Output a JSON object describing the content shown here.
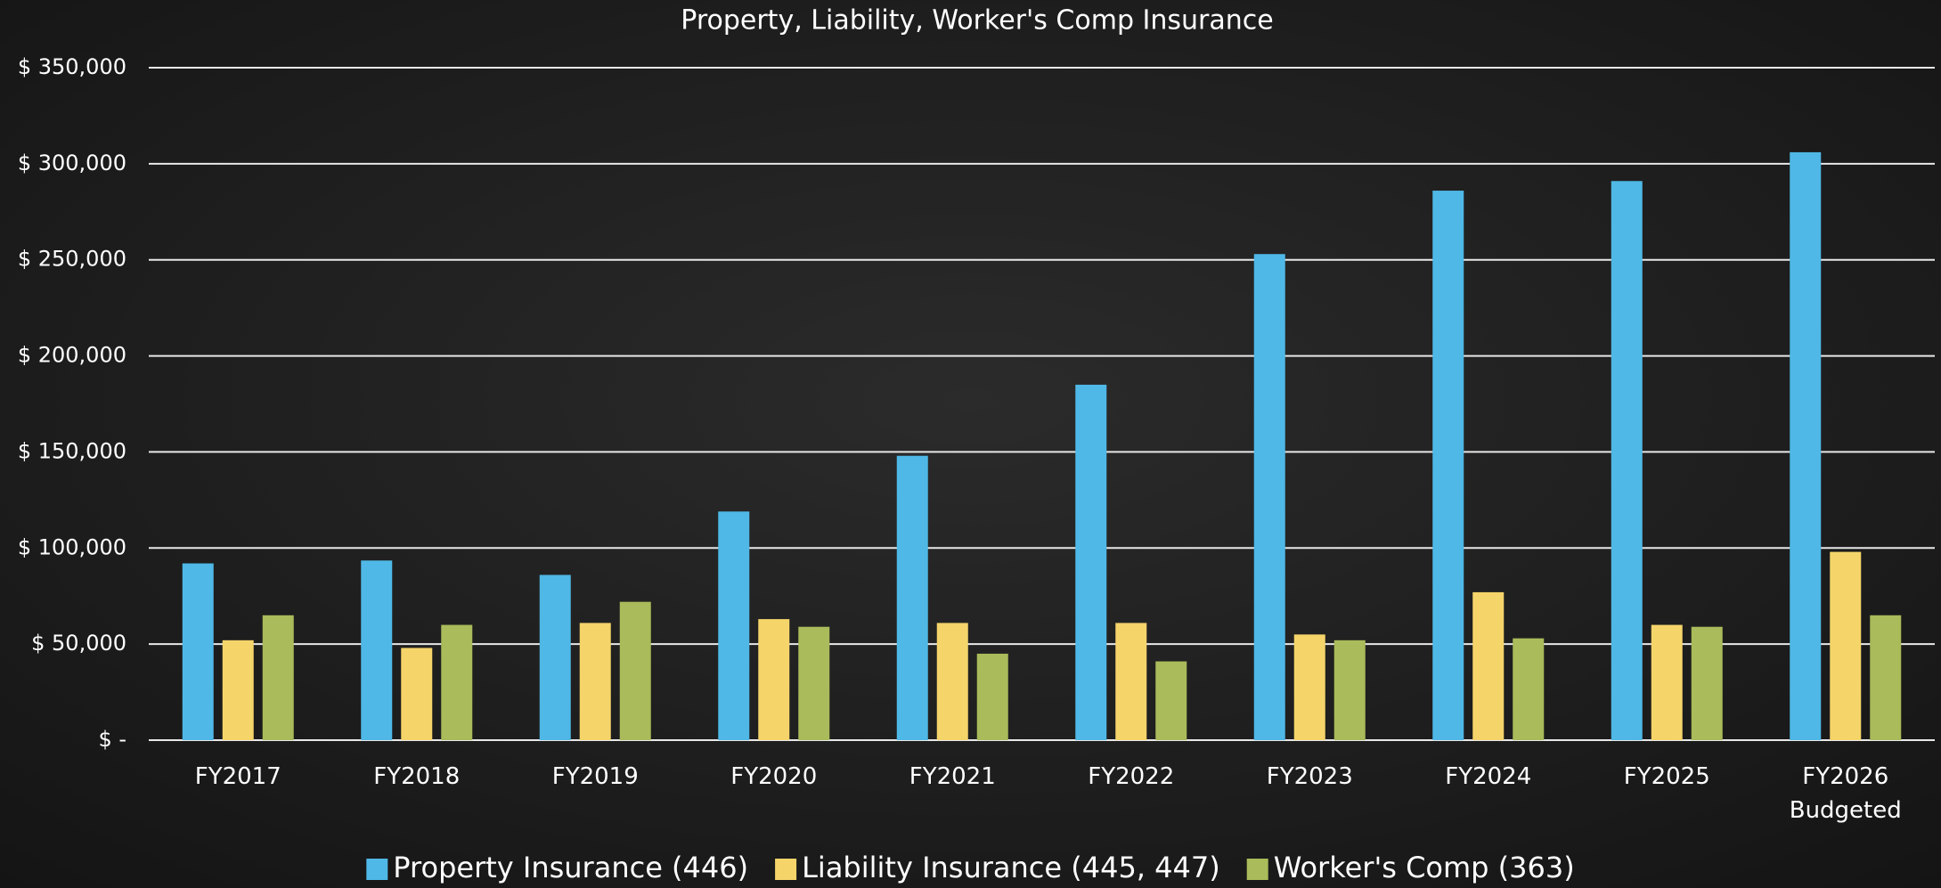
{
  "chart_data": {
    "type": "bar",
    "title": "Property, Liability, Worker's Comp Insurance",
    "categories": [
      "FY2017",
      "FY2018",
      "FY2019",
      "FY2020",
      "FY2021",
      "FY2022",
      "FY2023",
      "FY2024",
      "FY2025",
      "FY2026 Budgeted"
    ],
    "series": [
      {
        "name": "Property Insurance (446)",
        "color": "#4fb8e6",
        "values": [
          92000,
          93500,
          86000,
          119000,
          148000,
          185000,
          253000,
          286000,
          291000,
          306000
        ]
      },
      {
        "name": "Liability Insurance (445, 447)",
        "color": "#f5d46a",
        "values": [
          52000,
          48000,
          61000,
          63000,
          61000,
          61000,
          55000,
          77000,
          60000,
          98000
        ]
      },
      {
        "name": "Worker's Comp (363)",
        "color": "#a9bb5a",
        "values": [
          65000,
          60000,
          72000,
          59000,
          45000,
          41000,
          52000,
          53000,
          59000,
          65000
        ]
      }
    ],
    "ylim": [
      0,
      350000
    ],
    "yticks": [
      {
        "value": 0,
        "label": "$ -"
      },
      {
        "value": 50000,
        "label": "$ 50,000"
      },
      {
        "value": 100000,
        "label": "$ 100,000"
      },
      {
        "value": 150000,
        "label": "$ 150,000"
      },
      {
        "value": 200000,
        "label": "$ 200,000"
      },
      {
        "value": 250000,
        "label": "$ 250,000"
      },
      {
        "value": 300000,
        "label": "$ 300,000"
      },
      {
        "value": 350000,
        "label": "$ 350,000"
      }
    ],
    "grid": true,
    "legend": "bottom"
  }
}
